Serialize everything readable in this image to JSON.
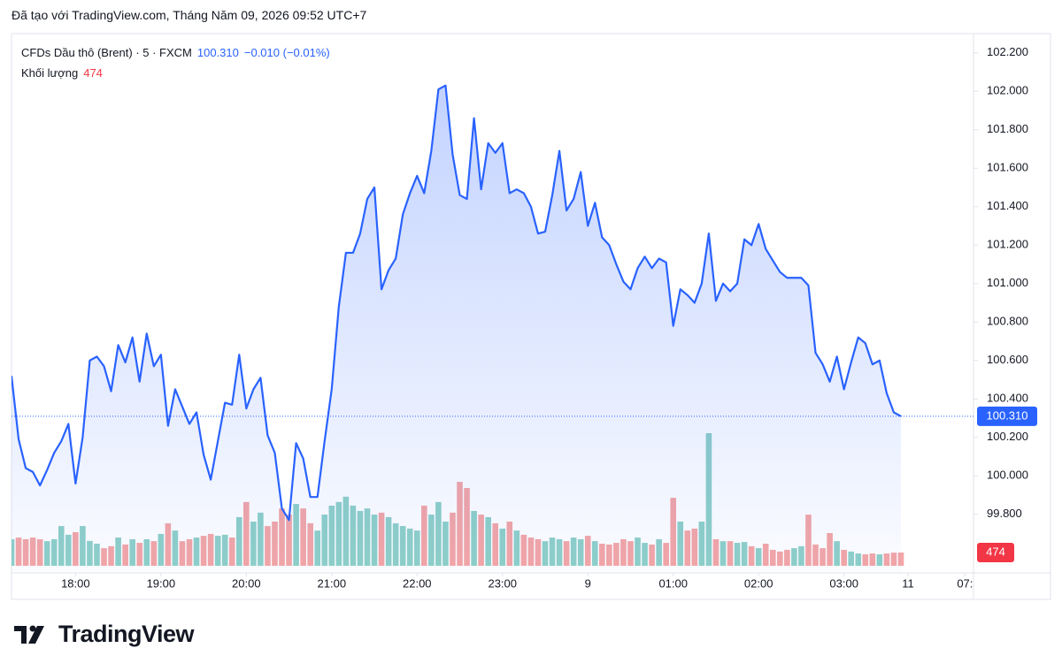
{
  "chart_data": {
    "type": "line",
    "header": "Đã tạo với TradingView.com, Tháng Năm 09, 2026 09:52 UTC+7",
    "brand": "TradingView",
    "last_label": "100.310",
    "change_label": "−0.010 (−0.01%)",
    "series": [
      {
        "name": "CFDs Dầu thô (Brent) · 5 · FXCM",
        "color": "#2962ff",
        "values": [
          100.52,
          100.19,
          100.04,
          100.02,
          99.95,
          100.03,
          100.12,
          100.18,
          100.27,
          99.96,
          100.2,
          100.6,
          100.62,
          100.57,
          100.44,
          100.68,
          100.59,
          100.72,
          100.49,
          100.74,
          100.57,
          100.63,
          100.26,
          100.45,
          100.36,
          100.27,
          100.33,
          100.11,
          99.98,
          100.18,
          100.38,
          100.37,
          100.63,
          100.35,
          100.45,
          100.51,
          100.21,
          100.12,
          99.83,
          99.77,
          100.17,
          100.09,
          99.89,
          99.89,
          100.18,
          100.45,
          100.88,
          101.16,
          101.16,
          101.26,
          101.44,
          101.5,
          100.97,
          101.07,
          101.13,
          101.36,
          101.47,
          101.56,
          101.47,
          101.69,
          102.01,
          102.03,
          101.67,
          101.46,
          101.44,
          101.86,
          101.49,
          101.73,
          101.68,
          101.73,
          101.47,
          101.49,
          101.47,
          101.4,
          101.26,
          101.27,
          101.46,
          101.69,
          101.38,
          101.44,
          101.58,
          101.3,
          101.42,
          101.24,
          101.2,
          101.1,
          101.01,
          100.97,
          101.08,
          101.14,
          101.08,
          101.13,
          101.11,
          100.78,
          100.97,
          100.94,
          100.9,
          101.0,
          101.26,
          100.91,
          101.0,
          100.96,
          101.0,
          101.23,
          101.2,
          101.31,
          101.18,
          101.12,
          101.06,
          101.03,
          101.03,
          101.03,
          100.99,
          100.64,
          100.58,
          100.49,
          100.62,
          100.45,
          100.59,
          100.72,
          100.69,
          100.58,
          100.6,
          100.43,
          100.33,
          100.31
        ]
      },
      {
        "name": "Khối lượng",
        "type": "bar",
        "up_color": "#8fd0c8",
        "down_color": "#f4a6a6",
        "values": [
          950,
          1010,
          950,
          1010,
          950,
          880,
          950,
          1420,
          1110,
          1200,
          1420,
          890,
          790,
          630,
          700,
          1010,
          760,
          950,
          820,
          950,
          880,
          1140,
          1520,
          1260,
          880,
          950,
          1010,
          1070,
          1140,
          1070,
          1110,
          1010,
          1740,
          2280,
          1580,
          1900,
          1420,
          1580,
          2050,
          1830,
          2210,
          2050,
          1520,
          1260,
          1830,
          2150,
          2280,
          2470,
          2150,
          1960,
          2050,
          1830,
          1900,
          1740,
          1520,
          1420,
          1330,
          1260,
          2150,
          1830,
          2280,
          1580,
          1900,
          3000,
          2780,
          1960,
          1830,
          1740,
          1520,
          1330,
          1580,
          1260,
          1110,
          1010,
          950,
          880,
          1010,
          950,
          880,
          1010,
          950,
          1070,
          880,
          790,
          760,
          820,
          950,
          880,
          1010,
          820,
          760,
          950,
          820,
          2430,
          1580,
          1260,
          1330,
          1580,
          4740,
          950,
          880,
          880,
          820,
          850,
          700,
          630,
          790,
          570,
          510,
          570,
          630,
          700,
          1830,
          760,
          630,
          1170,
          880,
          570,
          510,
          440,
          410,
          440,
          410,
          440,
          470,
          474
        ]
      }
    ],
    "ylim": [
      99.5,
      102.3
    ],
    "yticks": [
      {
        "value": 99.8,
        "label": "99.800"
      },
      {
        "value": 100.0,
        "label": "100.000"
      },
      {
        "value": 100.2,
        "label": "100.200"
      },
      {
        "value": 100.4,
        "label": "100.400"
      },
      {
        "value": 100.6,
        "label": "100.600"
      },
      {
        "value": 100.8,
        "label": "100.800"
      },
      {
        "value": 101.0,
        "label": "101.000"
      },
      {
        "value": 101.2,
        "label": "101.200"
      },
      {
        "value": 101.4,
        "label": "101.400"
      },
      {
        "value": 101.6,
        "label": "101.600"
      },
      {
        "value": 101.8,
        "label": "101.800"
      },
      {
        "value": 102.0,
        "label": "102.000"
      },
      {
        "value": 102.2,
        "label": "102.200"
      }
    ],
    "xlim": [
      0,
      135.2
    ],
    "xticks": [
      {
        "value": 9,
        "label": "18:00"
      },
      {
        "value": 21,
        "label": "19:00"
      },
      {
        "value": 33,
        "label": "20:00"
      },
      {
        "value": 45,
        "label": "21:00"
      },
      {
        "value": 57,
        "label": "22:00"
      },
      {
        "value": 69,
        "label": "23:00"
      },
      {
        "value": 81,
        "label": "9"
      },
      {
        "value": 93,
        "label": "01:00"
      },
      {
        "value": 105,
        "label": "02:00"
      },
      {
        "value": 117,
        "label": "03:00"
      },
      {
        "value": 126,
        "label": "11"
      },
      {
        "value": 134,
        "label": "07:"
      }
    ]
  }
}
